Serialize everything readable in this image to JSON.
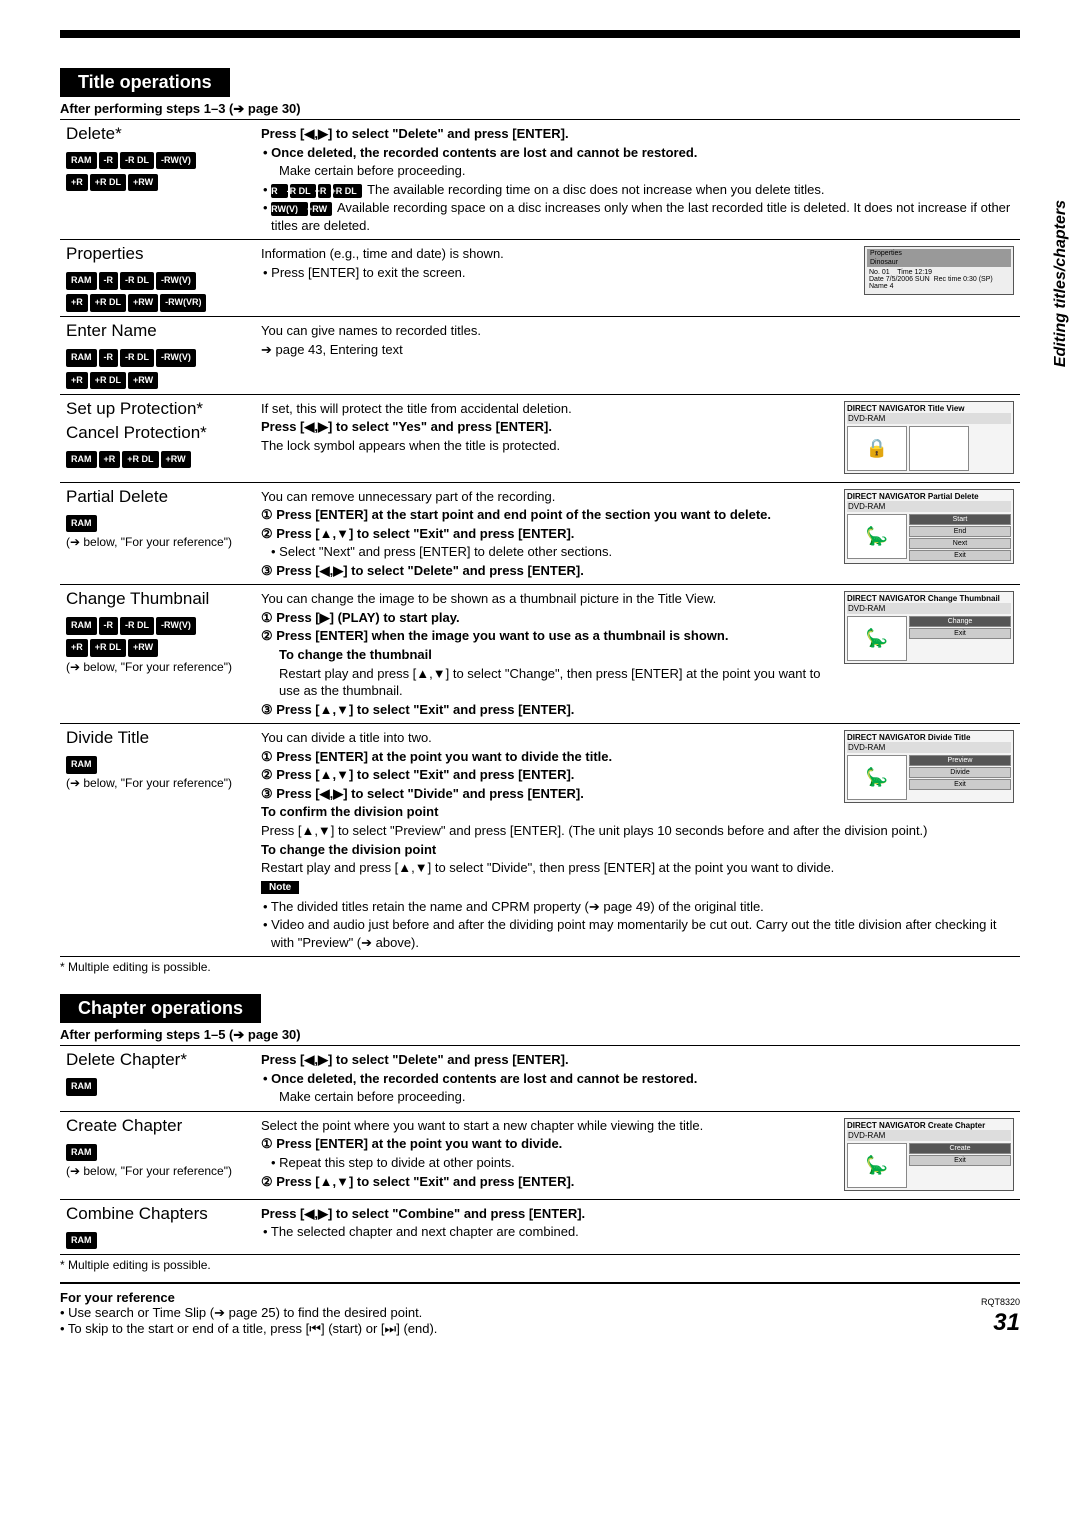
{
  "sidebar_label": "Editing titles/chapters",
  "page_number": "31",
  "rqt": "RQT8320",
  "title_ops": {
    "header": "Title operations",
    "after": "After performing steps 1–3 (➔ page 30)",
    "footnote": "* Multiple editing is possible.",
    "rows": {
      "delete": {
        "name": "Delete*",
        "badges_a": [
          "RAM",
          "-R",
          "-R DL",
          "-RW(V)"
        ],
        "badges_b": [
          "+R",
          "+R DL",
          "+RW"
        ],
        "l1": "Press [◀,▶] to select \"Delete\" and press [ENTER].",
        "l2": "• Once deleted, the recorded contents are lost and cannot be restored.",
        "l3": "Make certain before proceeding.",
        "l4a": "• ",
        "l4_badges": [
          "-R",
          "-R DL",
          "+R",
          "+R DL"
        ],
        "l4b": " The available recording time on a disc does not increase when you delete titles.",
        "l5a": "• ",
        "l5_badges": [
          "-RW(V)",
          "+RW"
        ],
        "l5b": " Available recording space on a disc increases only when the last recorded title is deleted. It does not increase if other titles are deleted."
      },
      "properties": {
        "name": "Properties",
        "badges_a": [
          "RAM",
          "-R",
          "-R DL",
          "-RW(V)"
        ],
        "badges_b": [
          "+R",
          "+R DL",
          "+RW",
          "-RW(VR)"
        ],
        "l1": "Information (e.g., time and date) is shown.",
        "l2": "• Press [ENTER] to exit the screen.",
        "thumb_title": "Properties",
        "thumb_sub": "Dinosaur",
        "thumb_lines": "No. 01    Time 12:19\nDate 7/5/2006 SUN  Rec time 0:30 (SP)\nName 4"
      },
      "enter_name": {
        "name": "Enter Name",
        "badges_a": [
          "RAM",
          "-R",
          "-R DL",
          "-RW(V)"
        ],
        "badges_b": [
          "+R",
          "+R DL",
          "+RW"
        ],
        "l1": "You can give names to recorded titles.",
        "l2": "➔ page 43, Entering text"
      },
      "protection": {
        "name1": "Set up Protection*",
        "name2": "Cancel Protection*",
        "badges": [
          "RAM",
          "+R",
          "+R DL",
          "+RW"
        ],
        "l1": "If set, this will protect the title from accidental deletion.",
        "l2": "Press [◀,▶] to select \"Yes\" and press [ENTER].",
        "l3": "The lock symbol appears when the title is protected.",
        "thumb_title": "DIRECT NAVIGATOR  Title View",
        "thumb_sub": "DVD-RAM"
      },
      "partial": {
        "name": "Partial Delete",
        "badges": [
          "RAM"
        ],
        "ref": "(➔ below, \"For your reference\")",
        "l1": "You can remove unnecessary part of the recording.",
        "l2": "① Press [ENTER] at the start point and end point of the section you want to delete.",
        "l3": "② Press [▲,▼] to select \"Exit\" and press [ENTER].",
        "l4": "• Select \"Next\" and press [ENTER] to delete other sections.",
        "l5": "③ Press [◀,▶] to select \"Delete\" and press [ENTER].",
        "thumb_title": "DIRECT NAVIGATOR  Partial Delete",
        "thumb_sub": "DVD-RAM",
        "btns": [
          "Start",
          "End",
          "Next",
          "Exit"
        ]
      },
      "thumbnail": {
        "name": "Change Thumbnail",
        "badges_a": [
          "RAM",
          "-R",
          "-R DL",
          "-RW(V)"
        ],
        "badges_b": [
          "+R",
          "+R DL",
          "+RW"
        ],
        "ref": "(➔ below, \"For your reference\")",
        "l1": "You can change the image to be shown as a thumbnail picture in the Title View.",
        "l2": "① Press [▶] (PLAY) to start play.",
        "l3": "② Press [ENTER] when the image you want to use as a thumbnail is shown.",
        "l4": "To change the thumbnail",
        "l5": "Restart play and press [▲,▼] to select \"Change\", then press [ENTER] at the point you want to use as the thumbnail.",
        "l6": "③ Press [▲,▼] to select \"Exit\" and press [ENTER].",
        "thumb_title": "DIRECT NAVIGATOR  Change Thumbnail",
        "thumb_sub": "DVD-RAM",
        "btns": [
          "Change",
          "Exit"
        ]
      },
      "divide": {
        "name": "Divide Title",
        "badges": [
          "RAM"
        ],
        "ref": "(➔ below, \"For your reference\")",
        "l1": "You can divide a title into two.",
        "l2": "① Press [ENTER] at the point you want to divide the title.",
        "l3": "② Press [▲,▼] to select \"Exit\" and press [ENTER].",
        "l4": "③ Press [◀,▶] to select \"Divide\" and press [ENTER].",
        "l5": "To confirm the division point",
        "l6": "Press [▲,▼] to select \"Preview\" and press [ENTER]. (The unit plays 10 seconds before and after the division point.)",
        "l7": "To change the division point",
        "l8": "Restart play and press [▲,▼] to select \"Divide\", then press [ENTER] at the point you want to divide.",
        "note": "Note",
        "l9": "• The divided titles retain the name and CPRM property (➔ page 49) of the original title.",
        "l10": "• Video and audio just before and after the dividing point may momentarily be cut out. Carry out the title division after checking it with \"Preview\" (➔ above).",
        "thumb_title": "DIRECT NAVIGATOR  Divide Title",
        "thumb_sub": "DVD-RAM",
        "btns": [
          "Preview",
          "Divide",
          "Exit"
        ]
      }
    }
  },
  "chapter_ops": {
    "header": "Chapter operations",
    "after": "After performing steps 1–5 (➔ page 30)",
    "footnote": "* Multiple editing is possible.",
    "rows": {
      "delete": {
        "name": "Delete Chapter*",
        "badges": [
          "RAM"
        ],
        "l1": "Press [◀,▶] to select \"Delete\" and press [ENTER].",
        "l2": "• Once deleted, the recorded contents are lost and cannot be restored.",
        "l3": "Make certain before proceeding."
      },
      "create": {
        "name": "Create Chapter",
        "badges": [
          "RAM"
        ],
        "ref": "(➔ below, \"For your reference\")",
        "l1": "Select the point where you want to start a new chapter while viewing the title.",
        "l2": "① Press [ENTER] at the point you want to divide.",
        "l3": "• Repeat this step to divide at other points.",
        "l4": "② Press [▲,▼] to select \"Exit\" and press [ENTER].",
        "thumb_title": "DIRECT NAVIGATOR  Create Chapter",
        "thumb_sub": "DVD-RAM",
        "btns": [
          "Create",
          "Exit"
        ]
      },
      "combine": {
        "name": "Combine Chapters",
        "badges": [
          "RAM"
        ],
        "l1": "Press [◀,▶] to select \"Combine\" and press [ENTER].",
        "l2": "• The selected chapter and next chapter are combined."
      }
    }
  },
  "for_reference": {
    "title": "For your reference",
    "l1": "• Use search or Time Slip (➔ page 25) to find the desired point.",
    "l2": "• To skip to the start or end of a title, press [⏮] (start) or [⏭] (end)."
  }
}
